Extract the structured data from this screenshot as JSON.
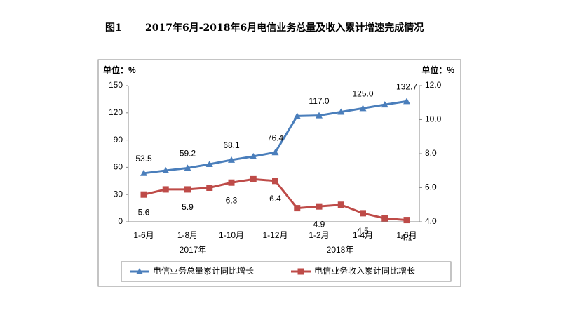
{
  "chart_data": {
    "type": "line",
    "title_prefix": "图1",
    "title": "2017年6月-2018年6月电信业务总量及收入累计增速完成情况",
    "y_label": "单位：%",
    "y2_label": "单位：%",
    "categories": [
      "1-6月",
      null,
      "1-8月",
      null,
      "1-10月",
      null,
      "1-12月",
      null,
      "1-2月",
      null,
      "1-4月",
      null,
      "1-6月"
    ],
    "year_labels": [
      "2017年",
      "2018年"
    ],
    "series": [
      {
        "name": "电信业务总量累计同比增长",
        "color": "#4a7ebb",
        "marker": "triangle",
        "axis": "y",
        "values": [
          53.5,
          56.5,
          59.2,
          63.4,
          68.1,
          72,
          76.4,
          116.5,
          117.0,
          121,
          125.0,
          129,
          132.7
        ],
        "value_labels": [
          "53.5",
          null,
          "59.2",
          null,
          "68.1",
          null,
          "76.4",
          null,
          "117.0",
          null,
          "125.0",
          null,
          "132.7"
        ]
      },
      {
        "name": "电信业务收入累计同比增长",
        "color": "#be4b48",
        "marker": "square",
        "axis": "y2",
        "values": [
          5.6,
          5.9,
          5.9,
          6.0,
          6.3,
          6.5,
          6.4,
          4.8,
          4.9,
          5.0,
          4.5,
          4.2,
          4.1
        ],
        "value_labels": [
          "5.6",
          null,
          "5.9",
          null,
          "6.3",
          null,
          "6.4",
          null,
          "4.9",
          null,
          "4.5",
          null,
          "4.1"
        ]
      }
    ],
    "ylim": [
      0,
      150
    ],
    "yticks": [
      0,
      30,
      60,
      90,
      120,
      150
    ],
    "y2lim": [
      4,
      12
    ],
    "y2ticks": [
      {
        "value": 4,
        "label": "4.0"
      },
      {
        "value": 6,
        "label": "6.0"
      },
      {
        "value": 8,
        "label": "8.0"
      },
      {
        "value": 10,
        "label": "10.0"
      },
      {
        "value": 12,
        "label": "12.0"
      }
    ],
    "legend": "bottom"
  }
}
